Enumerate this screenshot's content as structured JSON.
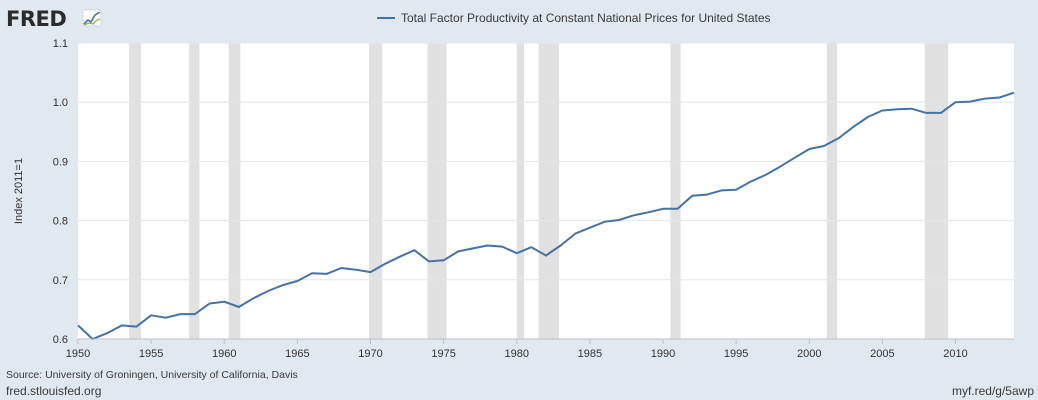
{
  "logo": {
    "text": "FRED"
  },
  "footer": {
    "source": "Source: University of Groningen, University of California, Davis",
    "site": "fred.stlouisfed.org",
    "short_link": "myf.red/g/5awp"
  },
  "colors": {
    "background": "#e1e9f0",
    "plot_background": "#ffffff",
    "series": "#4572a7",
    "recession": "#e1e1e1",
    "grid": "#e6e6e6"
  },
  "chart_data": {
    "type": "line",
    "title": "",
    "xlabel": "",
    "ylabel": "Index 2011=1",
    "xlim": [
      1950,
      2014
    ],
    "ylim": [
      0.6,
      1.1
    ],
    "x_ticks": [
      "1950",
      "1955",
      "1960",
      "1965",
      "1970",
      "1975",
      "1980",
      "1985",
      "1990",
      "1995",
      "2000",
      "2005",
      "2010"
    ],
    "y_ticks": [
      "0.6",
      "0.7",
      "0.8",
      "0.9",
      "1.0",
      "1.1"
    ],
    "grid": true,
    "legend_position": "top",
    "recessions": [
      [
        1953.5,
        1954.3
      ],
      [
        1957.6,
        1958.3
      ],
      [
        1960.3,
        1961.1
      ],
      [
        1969.9,
        1970.8
      ],
      [
        1973.9,
        1975.2
      ],
      [
        1980.0,
        1980.5
      ],
      [
        1981.5,
        1982.9
      ],
      [
        1990.5,
        1991.2
      ],
      [
        2001.2,
        2001.9
      ],
      [
        2007.9,
        2009.5
      ]
    ],
    "series": [
      {
        "name": "Total Factor Productivity at Constant National Prices for United States",
        "x": [
          1950,
          1951,
          1952,
          1953,
          1954,
          1955,
          1956,
          1957,
          1958,
          1959,
          1960,
          1961,
          1962,
          1963,
          1964,
          1965,
          1966,
          1967,
          1968,
          1969,
          1970,
          1971,
          1972,
          1973,
          1974,
          1975,
          1976,
          1977,
          1978,
          1979,
          1980,
          1981,
          1982,
          1983,
          1984,
          1985,
          1986,
          1987,
          1988,
          1989,
          1990,
          1991,
          1992,
          1993,
          1994,
          1995,
          1996,
          1997,
          1998,
          1999,
          2000,
          2001,
          2002,
          2003,
          2004,
          2005,
          2006,
          2007,
          2008,
          2009,
          2010,
          2011,
          2012,
          2013,
          2014
        ],
        "values": [
          0.623,
          0.6,
          0.61,
          0.623,
          0.621,
          0.64,
          0.636,
          0.642,
          0.642,
          0.66,
          0.663,
          0.654,
          0.669,
          0.681,
          0.691,
          0.698,
          0.711,
          0.71,
          0.72,
          0.717,
          0.713,
          0.727,
          0.739,
          0.75,
          0.731,
          0.733,
          0.748,
          0.753,
          0.758,
          0.756,
          0.745,
          0.755,
          0.741,
          0.758,
          0.778,
          0.788,
          0.798,
          0.801,
          0.809,
          0.814,
          0.82,
          0.82,
          0.842,
          0.844,
          0.851,
          0.852,
          0.866,
          0.877,
          0.891,
          0.906,
          0.921,
          0.926,
          0.939,
          0.958,
          0.975,
          0.986,
          0.988,
          0.989,
          0.982,
          0.982,
          1.0,
          1.001,
          1.006,
          1.008,
          1.016
        ]
      }
    ]
  }
}
